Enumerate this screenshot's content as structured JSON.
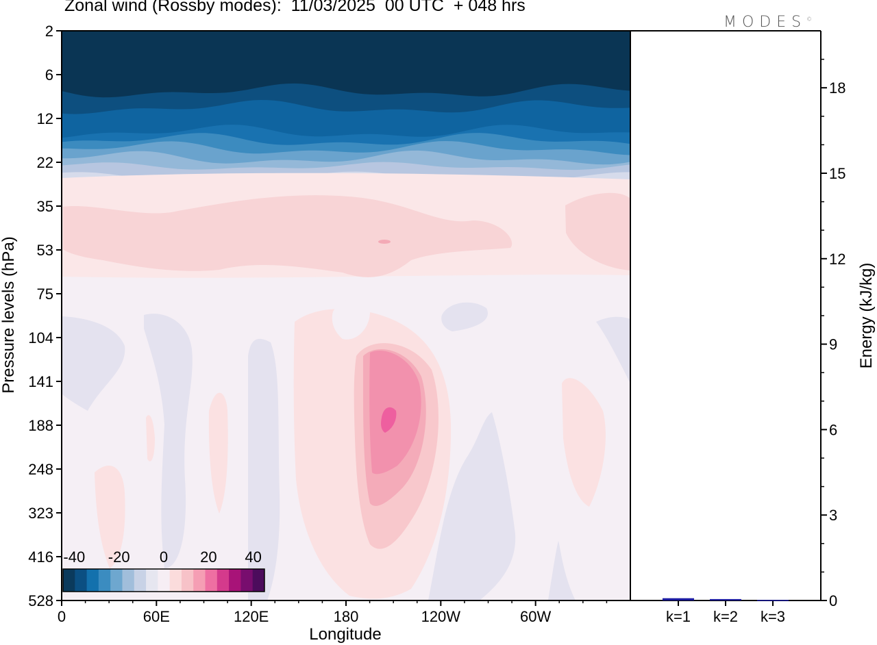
{
  "title": "Zonal wind (Rossby modes):  11/03/2025  00 UTC  + 048 hrs",
  "brand": "MODES",
  "brand_mark": "©",
  "chart_data": [
    {
      "type": "heatmap",
      "title": "Zonal wind (Rossby modes):  11/03/2025  00 UTC  + 048 hrs",
      "xlabel": "Longitude",
      "ylabel": "Pressure levels (hPa)",
      "x_ticks": [
        "0",
        "60E",
        "120E",
        "180",
        "120W",
        "60W"
      ],
      "x_tick_values": [
        0,
        60,
        120,
        180,
        240,
        300
      ],
      "xlim": [
        0,
        360
      ],
      "y_ticks": [
        "2",
        "6",
        "12",
        "22",
        "35",
        "53",
        "75",
        "104",
        "141",
        "188",
        "248",
        "323",
        "416",
        "528"
      ],
      "colorbar": {
        "labels": [
          "-40",
          "-20",
          "0",
          "20",
          "40"
        ],
        "label_values": [
          -40,
          -20,
          0,
          20,
          40
        ],
        "colors": [
          "#0b3a5c",
          "#0b4f82",
          "#1371ad",
          "#3b8cc0",
          "#6ea7cf",
          "#a1bedb",
          "#c8d2e6",
          "#e6e6f0",
          "#f6eef4",
          "#fbdcdc",
          "#f7c2c8",
          "#f59eb4",
          "#ee6fa2",
          "#d43a8c",
          "#a81378",
          "#780d6e",
          "#4c0c5c"
        ]
      },
      "fields": {
        "upper_band_colors": [
          "#0a3554",
          "#0d4f7f",
          "#0f64a0",
          "#1972b0",
          "#3c8bbf",
          "#6aa3cd",
          "#94b8d8",
          "#b7c6e0",
          "#d6dbeb",
          "#ece8f2",
          "#f5eff4"
        ],
        "mid_colors": [
          "#fbe7e8",
          "#f8d4d6"
        ],
        "lower_bg": "#f5eff5",
        "negative_tint": "#e4e2ef",
        "jet_colors": [
          "#fbe1e2",
          "#f8c8cc",
          "#f4abb9",
          "#f291ad",
          "#ee5f9f"
        ]
      }
    },
    {
      "type": "bar",
      "ylabel": "Energy (kJ/kg)",
      "categories": [
        "k=1",
        "k=2",
        "k=3"
      ],
      "values": [
        0.08,
        0.05,
        0.02
      ],
      "ylim": [
        0,
        20
      ],
      "y_ticks": [
        "0",
        "3",
        "6",
        "9",
        "12",
        "15",
        "18"
      ],
      "y_tick_values": [
        0,
        3,
        6,
        9,
        12,
        15,
        18
      ],
      "bar_color": "#1a1aa0"
    }
  ]
}
